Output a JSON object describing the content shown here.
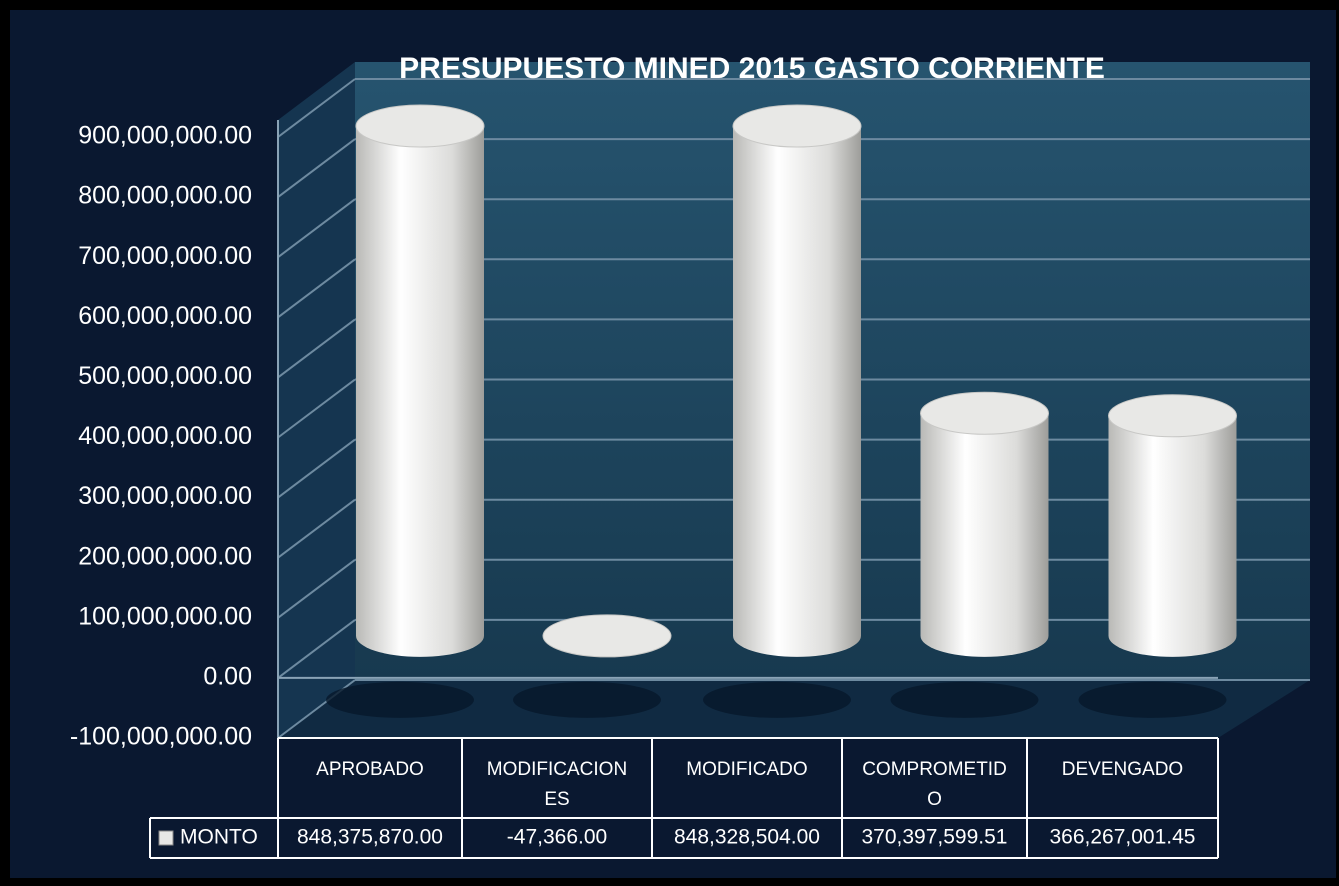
{
  "chart_data": {
    "type": "bar3d",
    "title": "PRESUPUESTO  MINED 2015 GASTO CORRIENTE",
    "categories": [
      "APROBADO",
      "MODIFICACIONES",
      "MODIFICADO",
      "COMPROMETIDO",
      "DEVENGADO"
    ],
    "series": [
      {
        "name": "MONTO",
        "color": "#e8e8e6",
        "values": [
          848375870.0,
          -47366.0,
          848328504.0,
          370397599.51,
          366267001.45
        ],
        "value_labels": [
          "848,375,870.00",
          "-47,366.00",
          "848,328,504.00",
          "370,397,599.51",
          "366,267,001.45"
        ]
      }
    ],
    "ylim": [
      -100000000,
      900000000
    ],
    "yticks": [
      {
        "value": -100000000,
        "label": "-100,000,000.00"
      },
      {
        "value": 0,
        "label": "0.00"
      },
      {
        "value": 100000000,
        "label": "100,000,000.00"
      },
      {
        "value": 200000000,
        "label": "200,000,000.00"
      },
      {
        "value": 300000000,
        "label": "300,000,000.00"
      },
      {
        "value": 400000000,
        "label": "400,000,000.00"
      },
      {
        "value": 500000000,
        "label": "500,000,000.00"
      },
      {
        "value": 600000000,
        "label": "600,000,000.00"
      },
      {
        "value": 700000000,
        "label": "700,000,000.00"
      },
      {
        "value": 800000000,
        "label": "800,000,000.00"
      },
      {
        "value": 900000000,
        "label": "900,000,000.00"
      }
    ],
    "grid": true,
    "legend": "table"
  }
}
